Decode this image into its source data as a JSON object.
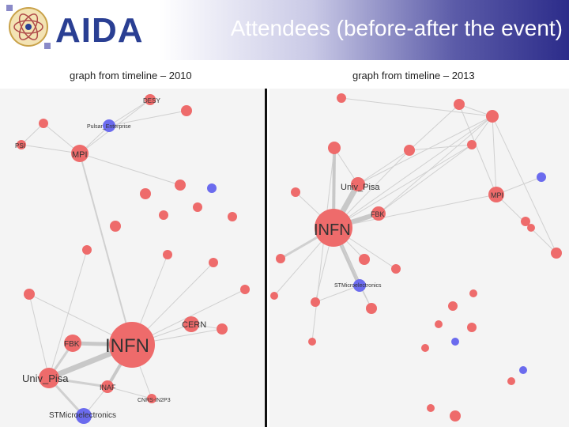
{
  "header": {
    "logo_text": "AIDA",
    "title": "Attendees (before-after the event)"
  },
  "colors": {
    "node_red": "#ee6b6b",
    "node_blue": "#6b6bee",
    "edge": "#d0d0d0"
  },
  "left_graph": {
    "caption": "graph from timeline – 2010",
    "labels": {
      "desy": "DESY",
      "pulsar": "Pulsar_Enterprise",
      "psi": "PSI",
      "mpi": "MPI",
      "cern": "CERN",
      "fbk": "FBK",
      "infn": "INFN",
      "univ_pisa": "Univ_Pisa",
      "inaf": "INAF",
      "cnrs": "CNRS-IN2P3",
      "stmicro": "STMicroelectronics"
    }
  },
  "right_graph": {
    "caption": "graph from timeline – 2013",
    "labels": {
      "univ_pisa": "Univ_Pisa",
      "fbk": "FBK",
      "mpi": "MPI",
      "infn": "INFN",
      "stmicro": "STMicroelectronics"
    }
  }
}
